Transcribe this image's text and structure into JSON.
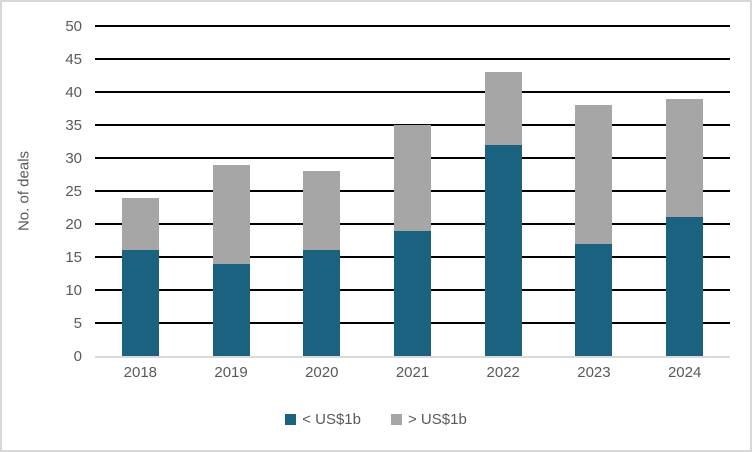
{
  "chart_data": {
    "type": "bar",
    "stacked": true,
    "title": "",
    "xlabel": "",
    "ylabel": "No. of deals",
    "categories": [
      "2018",
      "2019",
      "2020",
      "2021",
      "2022",
      "2023",
      "2024"
    ],
    "series": [
      {
        "name": "< US$1b",
        "color": "#1A6280",
        "values": [
          16,
          14,
          16,
          19,
          32,
          17,
          21
        ]
      },
      {
        "name": "> US$1b",
        "color": "#A6A6A6",
        "values": [
          8,
          15,
          12,
          16,
          11,
          21,
          18
        ]
      }
    ],
    "totals": [
      24,
      29,
      28,
      35,
      43,
      38,
      39
    ],
    "ylim": [
      0,
      50
    ],
    "ytick_step": 5,
    "grid": "horizontal",
    "legend_position": "bottom"
  },
  "styles": {
    "gridline_color": "#000000",
    "axis_line_color": "#D9D9D9",
    "text_color": "#595959",
    "background": "#FFFFFF",
    "border_color": "#D8D8D8"
  }
}
